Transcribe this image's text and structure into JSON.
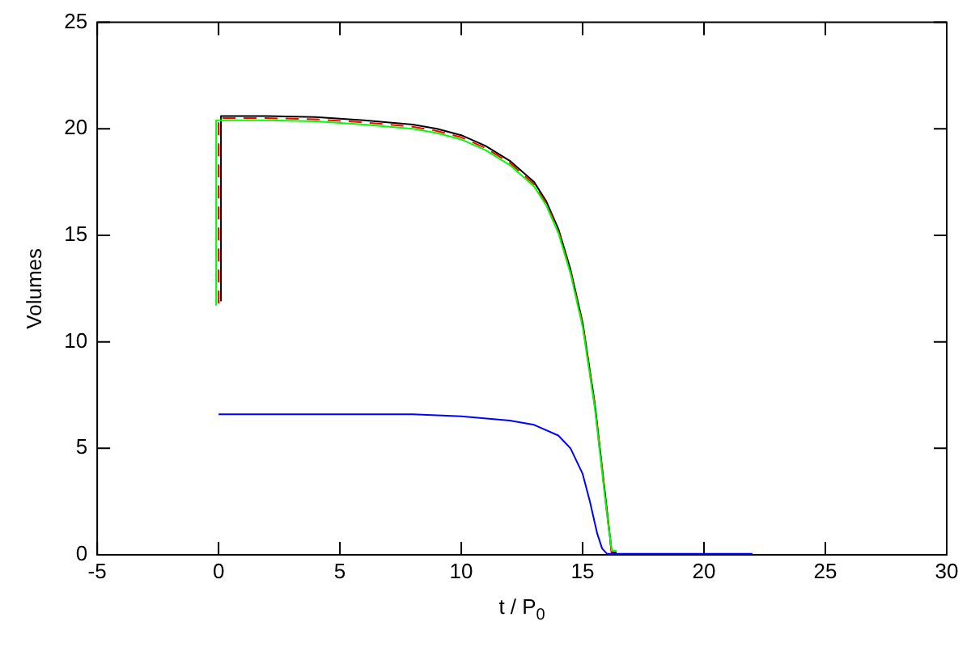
{
  "chart_data": {
    "type": "line",
    "xlabel": "t / P$_{0}$",
    "ylabel": "Volumes",
    "xlim": [
      -5,
      30
    ],
    "xticks": [
      -5,
      0,
      5,
      10,
      15,
      20,
      25,
      30
    ],
    "ylim": [
      0,
      25
    ],
    "yticks": [
      0,
      5,
      10,
      15,
      20,
      25
    ],
    "grid": false,
    "legend": false,
    "marker": "none",
    "series": [
      {
        "color": "#000000",
        "x": [
          0.1,
          0.1,
          2,
          4,
          6,
          8,
          9,
          10,
          11,
          12,
          13,
          13.5,
          14,
          14.5,
          15,
          15.5,
          15.8,
          16,
          16.2,
          16.4
        ],
        "values": [
          11.9,
          20.6,
          20.6,
          20.55,
          20.4,
          20.2,
          20,
          19.7,
          19.2,
          18.5,
          17.5,
          16.6,
          15.3,
          13.4,
          10.9,
          7.1,
          4.1,
          2.1,
          0.1,
          0.1
        ]
      },
      {
        "color": "#ff0000",
        "line_style": "dashed",
        "x": [
          0,
          0,
          2,
          4,
          6,
          8,
          9,
          10,
          11,
          12,
          13,
          13.5,
          14,
          14.5,
          15,
          15.5,
          15.8,
          16,
          16.2,
          16.4
        ],
        "values": [
          11.8,
          20.5,
          20.5,
          20.45,
          20.3,
          20.1,
          19.9,
          19.6,
          19.1,
          18.4,
          17.4,
          16.5,
          15.2,
          13.3,
          10.8,
          7,
          4,
          2,
          0,
          0
        ]
      },
      {
        "color": "#00ff00",
        "x": [
          -0.1,
          -0.1,
          2,
          4,
          6,
          8,
          9,
          10,
          11,
          12,
          13,
          13.5,
          14,
          14.5,
          15,
          15.5,
          15.8,
          16,
          16.2,
          16.4
        ],
        "values": [
          11.7,
          20.4,
          20.4,
          20.35,
          20.2,
          20,
          19.8,
          19.5,
          19,
          18.3,
          17.3,
          16.4,
          15.1,
          13.2,
          10.7,
          6.9,
          3.9,
          1.9,
          0.2,
          0.2
        ]
      },
      {
        "color": "#0000ff",
        "x": [
          0,
          4,
          8,
          10,
          12,
          13,
          14,
          14.5,
          15,
          15.3,
          15.6,
          15.8,
          16,
          22
        ],
        "values": [
          6.6,
          6.6,
          6.6,
          6.5,
          6.3,
          6.1,
          5.6,
          5,
          3.8,
          2.5,
          1,
          0.3,
          0.05,
          0.05
        ]
      }
    ]
  }
}
